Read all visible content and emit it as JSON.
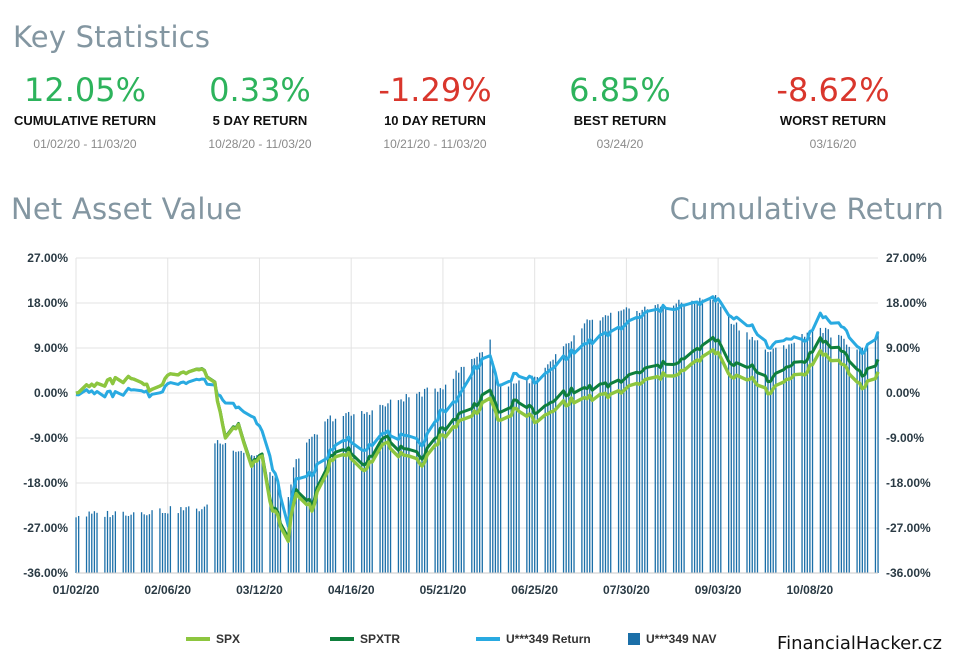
{
  "key_statistics": {
    "title": "Key Statistics",
    "items": [
      {
        "value": "12.05%",
        "label": "CUMULATIVE RETURN",
        "date": "01/02/20 - 11/03/20",
        "color": "#2db35c"
      },
      {
        "value": "0.33%",
        "label": "5 DAY RETURN",
        "date": "10/28/20 - 11/03/20",
        "color": "#2db35c"
      },
      {
        "value": "-1.29%",
        "label": "10 DAY RETURN",
        "date": "10/21/20 - 11/03/20",
        "color": "#d9362c"
      },
      {
        "value": "6.85%",
        "label": "BEST RETURN",
        "date": "03/24/20",
        "color": "#2db35c"
      },
      {
        "value": "-8.62%",
        "label": "WORST RETURN",
        "date": "03/16/20",
        "color": "#d9362c"
      }
    ]
  },
  "nav_title": "Net Asset Value",
  "cumulative_title": "Cumulative Return",
  "brand": "FinancialHacker.cz",
  "chart_data": {
    "type": "line",
    "x_tick_labels": [
      "01/02/20",
      "02/06/20",
      "03/12/20",
      "04/16/20",
      "05/21/20",
      "06/25/20",
      "07/30/20",
      "09/03/20",
      "10/08/20"
    ],
    "x_range": [
      "01/02/20",
      "11/03/20"
    ],
    "y_tick_labels": [
      "27.00%",
      "18.00%",
      "9.00%",
      "0.00%",
      "-9.00%",
      "-18.00%",
      "-27.00%",
      "-36.00%"
    ],
    "ylim": [
      -36,
      27
    ],
    "grid": true,
    "legend_position": "bottom",
    "series": [
      {
        "name": "SPX",
        "type": "line",
        "color": "#8dc63f",
        "points": [
          [
            "01/02/20",
            0.5
          ],
          [
            "01/09/20",
            1.5
          ],
          [
            "01/17/20",
            2.5
          ],
          [
            "01/23/20",
            2.8
          ],
          [
            "01/31/20",
            0.5
          ],
          [
            "02/06/20",
            3.2
          ],
          [
            "02/12/20",
            4.5
          ],
          [
            "02/19/20",
            4.8
          ],
          [
            "02/24/20",
            1.5
          ],
          [
            "02/28/20",
            -9
          ],
          [
            "03/04/20",
            -6
          ],
          [
            "03/09/20",
            -14
          ],
          [
            "03/13/20",
            -13
          ],
          [
            "03/16/20",
            -22
          ],
          [
            "03/20/20",
            -26
          ],
          [
            "03/23/20",
            -30
          ],
          [
            "03/24/20",
            -25
          ],
          [
            "03/26/20",
            -20
          ],
          [
            "04/01/20",
            -23
          ],
          [
            "04/08/20",
            -14
          ],
          [
            "04/14/20",
            -12
          ],
          [
            "04/21/20",
            -15
          ],
          [
            "04/29/20",
            -10
          ],
          [
            "05/06/20",
            -13
          ],
          [
            "05/13/20",
            -14
          ],
          [
            "05/20/20",
            -9
          ],
          [
            "05/27/20",
            -6
          ],
          [
            "06/02/20",
            -4
          ],
          [
            "06/08/20",
            -0.5
          ],
          [
            "06/11/20",
            -6
          ],
          [
            "06/19/20",
            -3
          ],
          [
            "06/26/20",
            -6
          ],
          [
            "07/06/20",
            -2
          ],
          [
            "07/15/20",
            -1
          ],
          [
            "07/24/20",
            -0.5
          ],
          [
            "07/31/20",
            1
          ],
          [
            "08/07/20",
            2.5
          ],
          [
            "08/14/20",
            3.5
          ],
          [
            "08/21/20",
            4.5
          ],
          [
            "08/28/20",
            7
          ],
          [
            "09/02/20",
            8.5
          ],
          [
            "09/08/20",
            3
          ],
          [
            "09/16/20",
            3
          ],
          [
            "09/23/20",
            0
          ],
          [
            "09/30/20",
            3
          ],
          [
            "10/07/20",
            4.5
          ],
          [
            "10/12/20",
            8
          ],
          [
            "10/20/20",
            6
          ],
          [
            "10/28/20",
            1
          ],
          [
            "11/03/20",
            4
          ]
        ]
      },
      {
        "name": "SPXTR",
        "type": "line",
        "color": "#0f7f3c",
        "points": [
          [
            "01/02/20",
            0.5
          ],
          [
            "01/09/20",
            1.5
          ],
          [
            "01/17/20",
            2.5
          ],
          [
            "01/23/20",
            2.8
          ],
          [
            "01/31/20",
            0.5
          ],
          [
            "02/06/20",
            3.2
          ],
          [
            "02/12/20",
            4.5
          ],
          [
            "02/19/20",
            4.9
          ],
          [
            "02/24/20",
            1.6
          ],
          [
            "02/28/20",
            -8.8
          ],
          [
            "03/04/20",
            -5.8
          ],
          [
            "03/09/20",
            -13.7
          ],
          [
            "03/13/20",
            -12.6
          ],
          [
            "03/16/20",
            -21.5
          ],
          [
            "03/20/20",
            -25.4
          ],
          [
            "03/23/20",
            -29.3
          ],
          [
            "03/24/20",
            -24.3
          ],
          [
            "03/26/20",
            -19.2
          ],
          [
            "04/01/20",
            -22.1
          ],
          [
            "04/08/20",
            -13.1
          ],
          [
            "04/14/20",
            -11
          ],
          [
            "04/21/20",
            -13.9
          ],
          [
            "04/29/20",
            -8.8
          ],
          [
            "05/06/20",
            -11.7
          ],
          [
            "05/13/20",
            -12.6
          ],
          [
            "05/20/20",
            -7.6
          ],
          [
            "05/27/20",
            -4.5
          ],
          [
            "06/02/20",
            -2.5
          ],
          [
            "06/08/20",
            1.1
          ],
          [
            "06/11/20",
            -4.4
          ],
          [
            "06/19/20",
            -1.3
          ],
          [
            "06/26/20",
            -4.2
          ],
          [
            "07/06/20",
            0
          ],
          [
            "07/15/20",
            1
          ],
          [
            "07/24/20",
            1.6
          ],
          [
            "07/31/20",
            3.2
          ],
          [
            "08/07/20",
            4.8
          ],
          [
            "08/14/20",
            5.8
          ],
          [
            "08/21/20",
            6.8
          ],
          [
            "08/28/20",
            9.3
          ],
          [
            "09/02/20",
            11
          ],
          [
            "09/08/20",
            5.5
          ],
          [
            "09/16/20",
            5.5
          ],
          [
            "09/23/20",
            2.4
          ],
          [
            "09/30/20",
            5.5
          ],
          [
            "10/07/20",
            7
          ],
          [
            "10/12/20",
            10.6
          ],
          [
            "10/20/20",
            8.6
          ],
          [
            "10/28/20",
            3.5
          ],
          [
            "11/03/20",
            6.5
          ]
        ]
      },
      {
        "name": "U***349 Return",
        "type": "line",
        "color": "#29aae1",
        "points": [
          [
            "01/02/20",
            0.2
          ],
          [
            "01/09/20",
            0
          ],
          [
            "01/17/20",
            -0.3
          ],
          [
            "01/23/20",
            0.5
          ],
          [
            "01/31/20",
            -0.5
          ],
          [
            "02/06/20",
            1.5
          ],
          [
            "02/12/20",
            2.5
          ],
          [
            "02/19/20",
            2.8
          ],
          [
            "02/24/20",
            1
          ],
          [
            "02/28/20",
            -2
          ],
          [
            "03/04/20",
            -2.5
          ],
          [
            "03/09/20",
            -4
          ],
          [
            "03/13/20",
            -8
          ],
          [
            "03/16/20",
            -13
          ],
          [
            "03/20/20",
            -20
          ],
          [
            "03/23/20",
            -27
          ],
          [
            "03/24/20",
            -22
          ],
          [
            "03/26/20",
            -17
          ],
          [
            "04/01/20",
            -16
          ],
          [
            "04/08/20",
            -12
          ],
          [
            "04/14/20",
            -9
          ],
          [
            "04/21/20",
            -11
          ],
          [
            "04/29/20",
            -8
          ],
          [
            "05/06/20",
            -9
          ],
          [
            "05/13/20",
            -10
          ],
          [
            "05/20/20",
            -4
          ],
          [
            "05/27/20",
            -1
          ],
          [
            "06/02/20",
            5
          ],
          [
            "06/08/20",
            8
          ],
          [
            "06/11/20",
            1
          ],
          [
            "06/19/20",
            4
          ],
          [
            "06/26/20",
            2
          ],
          [
            "07/06/20",
            7
          ],
          [
            "07/15/20",
            10
          ],
          [
            "07/24/20",
            12
          ],
          [
            "07/31/20",
            14
          ],
          [
            "08/07/20",
            16
          ],
          [
            "08/14/20",
            17
          ],
          [
            "08/21/20",
            17.5
          ],
          [
            "08/28/20",
            18
          ],
          [
            "09/02/20",
            19
          ],
          [
            "09/08/20",
            15
          ],
          [
            "09/16/20",
            13.5
          ],
          [
            "09/23/20",
            9
          ],
          [
            "09/30/20",
            11
          ],
          [
            "10/07/20",
            11
          ],
          [
            "10/12/20",
            15.5
          ],
          [
            "10/20/20",
            13.5
          ],
          [
            "10/28/20",
            8
          ],
          [
            "11/03/20",
            12
          ]
        ]
      },
      {
        "name": "U***349 NAV",
        "type": "bar",
        "color": "#1b6fa8",
        "points": [
          [
            "01/02/20",
            -24.5
          ],
          [
            "02/21/20",
            -23
          ],
          [
            "02/24/20",
            -9.5
          ],
          [
            "03/13/20",
            -13
          ],
          [
            "03/16/20",
            -16
          ],
          [
            "03/23/20",
            -21
          ],
          [
            "03/26/20",
            -13
          ],
          [
            "04/08/20",
            -5
          ],
          [
            "04/21/20",
            -4
          ],
          [
            "05/06/20",
            -1
          ],
          [
            "05/20/20",
            1
          ],
          [
            "06/08/20",
            10
          ],
          [
            "06/11/20",
            1.5
          ],
          [
            "06/26/20",
            3
          ],
          [
            "07/15/20",
            14
          ],
          [
            "07/31/20",
            16.5
          ],
          [
            "08/21/20",
            18
          ],
          [
            "09/02/20",
            19
          ],
          [
            "09/08/20",
            14.5
          ],
          [
            "09/23/20",
            8
          ],
          [
            "10/12/20",
            13
          ],
          [
            "10/28/20",
            8.5
          ],
          [
            "11/03/20",
            12
          ]
        ]
      }
    ]
  }
}
